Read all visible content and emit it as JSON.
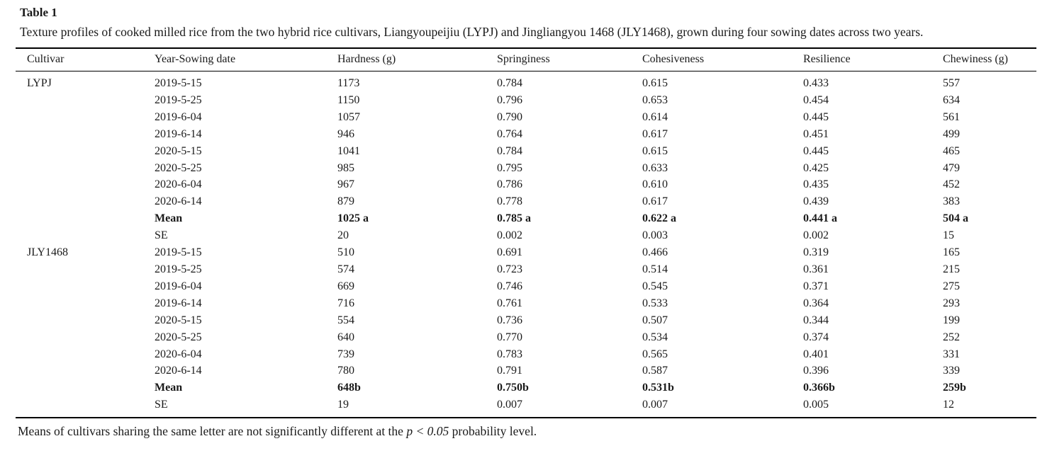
{
  "table": {
    "label": "Table 1",
    "caption": "Texture profiles of cooked milled rice from the two hybrid rice cultivars, Liangyoupeijiu (LYPJ) and Jingliangyou 1468 (JLY1468), grown during four sowing dates across two years.",
    "columns": [
      "Cultivar",
      "Year-Sowing date",
      "Hardness (g)",
      "Springiness",
      "Cohesiveness",
      "Resilience",
      "Chewiness (g)"
    ],
    "rows": [
      {
        "cultivar": "LYPJ",
        "date": "2019-5-15",
        "hardness": "1173",
        "springiness": "0.784",
        "cohesiveness": "0.615",
        "resilience": "0.433",
        "chewiness": "557",
        "bold": false
      },
      {
        "cultivar": "",
        "date": "2019-5-25",
        "hardness": "1150",
        "springiness": "0.796",
        "cohesiveness": "0.653",
        "resilience": "0.454",
        "chewiness": "634",
        "bold": false
      },
      {
        "cultivar": "",
        "date": "2019-6-04",
        "hardness": "1057",
        "springiness": "0.790",
        "cohesiveness": "0.614",
        "resilience": "0.445",
        "chewiness": "561",
        "bold": false
      },
      {
        "cultivar": "",
        "date": "2019-6-14",
        "hardness": "946",
        "springiness": "0.764",
        "cohesiveness": "0.617",
        "resilience": "0.451",
        "chewiness": "499",
        "bold": false
      },
      {
        "cultivar": "",
        "date": "2020-5-15",
        "hardness": "1041",
        "springiness": "0.784",
        "cohesiveness": "0.615",
        "resilience": "0.445",
        "chewiness": "465",
        "bold": false
      },
      {
        "cultivar": "",
        "date": "2020-5-25",
        "hardness": "985",
        "springiness": "0.795",
        "cohesiveness": "0.633",
        "resilience": "0.425",
        "chewiness": "479",
        "bold": false
      },
      {
        "cultivar": "",
        "date": "2020-6-04",
        "hardness": "967",
        "springiness": "0.786",
        "cohesiveness": "0.610",
        "resilience": "0.435",
        "chewiness": "452",
        "bold": false
      },
      {
        "cultivar": "",
        "date": "2020-6-14",
        "hardness": "879",
        "springiness": "0.778",
        "cohesiveness": "0.617",
        "resilience": "0.439",
        "chewiness": "383",
        "bold": false
      },
      {
        "cultivar": "",
        "date": "Mean",
        "hardness": "1025 a",
        "springiness": "0.785 a",
        "cohesiveness": "0.622 a",
        "resilience": "0.441 a",
        "chewiness": "504 a",
        "bold": true
      },
      {
        "cultivar": "",
        "date": "SE",
        "hardness": "20",
        "springiness": "0.002",
        "cohesiveness": "0.003",
        "resilience": "0.002",
        "chewiness": "15",
        "bold": false
      },
      {
        "cultivar": "JLY1468",
        "date": "2019-5-15",
        "hardness": "510",
        "springiness": "0.691",
        "cohesiveness": "0.466",
        "resilience": "0.319",
        "chewiness": "165",
        "bold": false
      },
      {
        "cultivar": "",
        "date": "2019-5-25",
        "hardness": "574",
        "springiness": "0.723",
        "cohesiveness": "0.514",
        "resilience": "0.361",
        "chewiness": "215",
        "bold": false
      },
      {
        "cultivar": "",
        "date": "2019-6-04",
        "hardness": "669",
        "springiness": "0.746",
        "cohesiveness": "0.545",
        "resilience": "0.371",
        "chewiness": "275",
        "bold": false
      },
      {
        "cultivar": "",
        "date": "2019-6-14",
        "hardness": "716",
        "springiness": "0.761",
        "cohesiveness": "0.533",
        "resilience": "0.364",
        "chewiness": "293",
        "bold": false
      },
      {
        "cultivar": "",
        "date": "2020-5-15",
        "hardness": "554",
        "springiness": "0.736",
        "cohesiveness": "0.507",
        "resilience": "0.344",
        "chewiness": "199",
        "bold": false
      },
      {
        "cultivar": "",
        "date": "2020-5-25",
        "hardness": "640",
        "springiness": "0.770",
        "cohesiveness": "0.534",
        "resilience": "0.374",
        "chewiness": "252",
        "bold": false
      },
      {
        "cultivar": "",
        "date": "2020-6-04",
        "hardness": "739",
        "springiness": "0.783",
        "cohesiveness": "0.565",
        "resilience": "0.401",
        "chewiness": "331",
        "bold": false
      },
      {
        "cultivar": "",
        "date": "2020-6-14",
        "hardness": "780",
        "springiness": "0.791",
        "cohesiveness": "0.587",
        "resilience": "0.396",
        "chewiness": "339",
        "bold": false
      },
      {
        "cultivar": "",
        "date": "Mean",
        "hardness": "648b",
        "springiness": "0.750b",
        "cohesiveness": "0.531b",
        "resilience": "0.366b",
        "chewiness": "259b",
        "bold": true
      },
      {
        "cultivar": "",
        "date": "SE",
        "hardness": "19",
        "springiness": "0.007",
        "cohesiveness": "0.007",
        "resilience": "0.005",
        "chewiness": "12",
        "bold": false
      }
    ],
    "footnote": {
      "prefix": "Means of cultivars sharing the same letter are not significantly different at the ",
      "pvalue": "p < 0.05",
      "suffix": " probability level."
    }
  },
  "chart_data": {
    "type": "table",
    "title": "Table 1. Texture profiles of cooked milled rice from LYPJ and JLY1468 across four sowing dates in two years",
    "columns": [
      "Cultivar",
      "Year-Sowing date",
      "Hardness (g)",
      "Springiness",
      "Cohesiveness",
      "Resilience",
      "Chewiness (g)"
    ],
    "series": [
      {
        "name": "LYPJ",
        "rows": [
          [
            "2019-5-15",
            1173,
            0.784,
            0.615,
            0.433,
            557
          ],
          [
            "2019-5-25",
            1150,
            0.796,
            0.653,
            0.454,
            634
          ],
          [
            "2019-6-04",
            1057,
            0.79,
            0.614,
            0.445,
            561
          ],
          [
            "2019-6-14",
            946,
            0.764,
            0.617,
            0.451,
            499
          ],
          [
            "2020-5-15",
            1041,
            0.784,
            0.615,
            0.445,
            465
          ],
          [
            "2020-5-25",
            985,
            0.795,
            0.633,
            0.425,
            479
          ],
          [
            "2020-6-04",
            967,
            0.786,
            0.61,
            0.435,
            452
          ],
          [
            "2020-6-14",
            879,
            0.778,
            0.617,
            0.439,
            383
          ],
          [
            "Mean",
            "1025 a",
            "0.785 a",
            "0.622 a",
            "0.441 a",
            "504 a"
          ],
          [
            "SE",
            20,
            0.002,
            0.003,
            0.002,
            15
          ]
        ]
      },
      {
        "name": "JLY1468",
        "rows": [
          [
            "2019-5-15",
            510,
            0.691,
            0.466,
            0.319,
            165
          ],
          [
            "2019-5-25",
            574,
            0.723,
            0.514,
            0.361,
            215
          ],
          [
            "2019-6-04",
            669,
            0.746,
            0.545,
            0.371,
            275
          ],
          [
            "2019-6-14",
            716,
            0.761,
            0.533,
            0.364,
            293
          ],
          [
            "2020-5-15",
            554,
            0.736,
            0.507,
            0.344,
            199
          ],
          [
            "2020-5-25",
            640,
            0.77,
            0.534,
            0.374,
            252
          ],
          [
            "2020-6-04",
            739,
            0.783,
            0.565,
            0.401,
            331
          ],
          [
            "2020-6-14",
            780,
            0.791,
            0.587,
            0.396,
            339
          ],
          [
            "Mean",
            "648b",
            "0.750b",
            "0.531b",
            "0.366b",
            "259b"
          ],
          [
            "SE",
            19,
            0.007,
            0.007,
            0.005,
            12
          ]
        ]
      }
    ]
  }
}
